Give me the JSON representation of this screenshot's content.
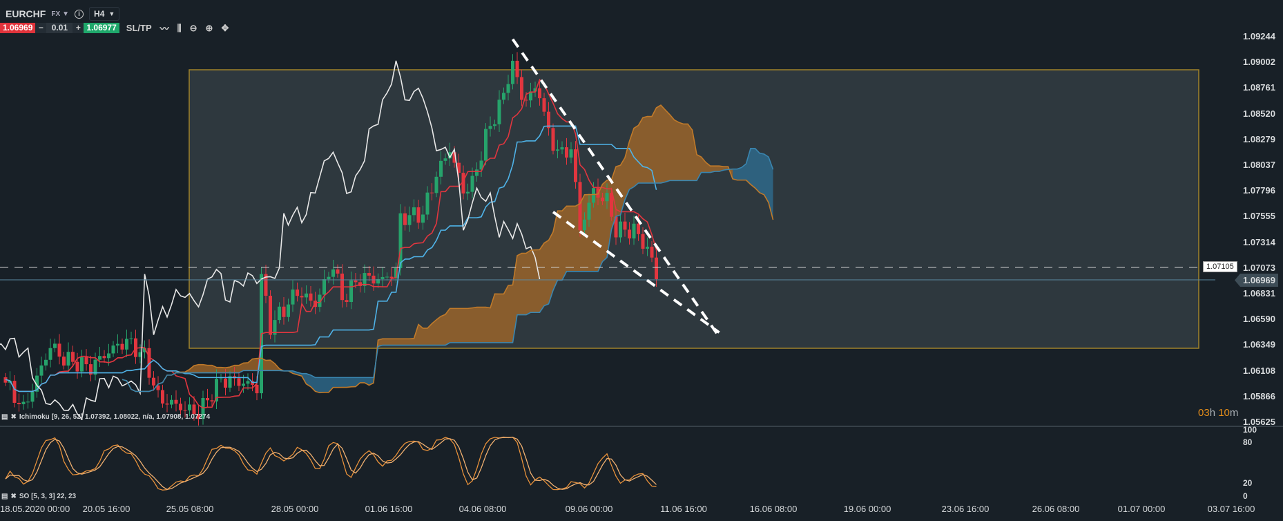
{
  "header": {
    "symbol": "EURCHF",
    "market": "FX",
    "timeframe": "H4",
    "bid": "1.06969",
    "ask": "1.06977",
    "quantity": "0.01",
    "minus": "−",
    "plus": "+",
    "sltp": "SL/TP"
  },
  "indicators": {
    "ichimoku": "Ichimoku [9, 26, 52] 1.07392, 1.08022, n/a, 1.07908, 1.07274",
    "so": "SO [5, 3, 3] 22, 23"
  },
  "price_axis": [
    "1.09244",
    "1.09002",
    "1.08761",
    "1.08520",
    "1.08279",
    "1.08037",
    "1.07796",
    "1.07555",
    "1.07314",
    "1.07073",
    "1.06831",
    "1.06590",
    "1.06349",
    "1.06108",
    "1.05866",
    "1.05625"
  ],
  "current_price": "1.06969",
  "line_price_tag": "1.07105",
  "so_axis": [
    "100",
    "80",
    "20",
    "0"
  ],
  "time_axis": [
    "18.05.2020 00:00",
    "20.05 16:00",
    "25.05 08:00",
    "28.05 00:00",
    "01.06 16:00",
    "04.06 08:00",
    "09.06 00:00",
    "11.06 16:00",
    "16.06 08:00",
    "19.06 00:00",
    "23.06 16:00",
    "26.06 08:00",
    "01.07 00:00",
    "03.07 16:00"
  ],
  "timer": {
    "h": "03",
    "hu": "h",
    "m": "10",
    "mu": "m"
  },
  "colors": {
    "up": "#26a36b",
    "down": "#e2363f",
    "tenkan": "#e2363f",
    "kijun": "#4fb3e8",
    "chikou": "#e8e8e8",
    "cloud_up": "#a86a28",
    "cloud_down": "#2f6f94",
    "so_k": "#e8913a",
    "so_d": "#f0b070",
    "box_stroke": "#a0822a"
  },
  "chart_data": {
    "type": "candlestick",
    "price_range": [
      1.05625,
      1.09244
    ],
    "close_keypoints": [
      [
        0,
        1.06
      ],
      [
        4,
        1.058
      ],
      [
        10,
        1.064
      ],
      [
        13,
        1.0625
      ],
      [
        19,
        1.061
      ],
      [
        22,
        1.062
      ],
      [
        27,
        1.0635
      ],
      [
        31,
        1.0625
      ],
      [
        34,
        1.059
      ],
      [
        38,
        1.0585
      ],
      [
        43,
        1.0575
      ],
      [
        48,
        1.06
      ],
      [
        52,
        1.0595
      ],
      [
        56,
        1.059
      ],
      [
        57,
        1.0695
      ],
      [
        59,
        1.065
      ],
      [
        62,
        1.067
      ],
      [
        65,
        1.069
      ],
      [
        69,
        1.068
      ],
      [
        73,
        1.0715
      ],
      [
        75,
        1.068
      ],
      [
        79,
        1.0695
      ],
      [
        84,
        1.069
      ],
      [
        87,
        1.07
      ],
      [
        88,
        1.075
      ],
      [
        93,
        1.076
      ],
      [
        96,
        1.08
      ],
      [
        99,
        1.0825
      ],
      [
        102,
        1.0785
      ],
      [
        104,
        1.079
      ],
      [
        107,
        1.083
      ],
      [
        111,
        1.0865
      ],
      [
        113,
        1.0895
      ],
      [
        115,
        1.086
      ],
      [
        119,
        1.087
      ],
      [
        121,
        1.083
      ],
      [
        124,
        1.0815
      ],
      [
        126,
        1.0825
      ],
      [
        128,
        1.075
      ],
      [
        131,
        1.0785
      ],
      [
        134,
        1.0775
      ],
      [
        136,
        1.0745
      ],
      [
        140,
        1.074
      ],
      [
        143,
        1.072
      ],
      [
        145,
        1.0697
      ]
    ],
    "horizontal_line": 1.07105,
    "rectangle": {
      "price_top": 1.09002,
      "price_bottom": 1.0637
    },
    "trendlines": [
      {
        "from": [
          113,
          1.0922
        ],
        "to": [
          159,
          1.0643
        ]
      },
      {
        "from": [
          122,
          1.076
        ],
        "to": [
          159,
          1.0647
        ]
      }
    ]
  }
}
